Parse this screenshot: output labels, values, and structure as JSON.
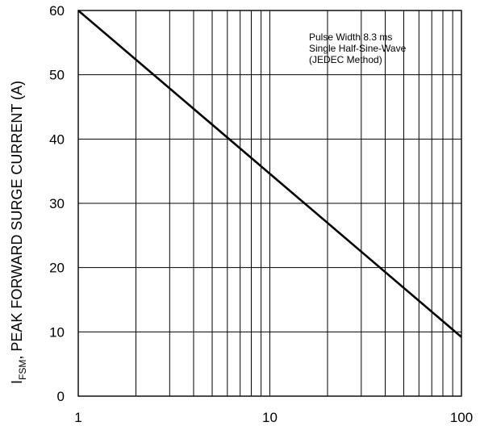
{
  "chart_data": {
    "type": "line",
    "title": "",
    "xlabel": "",
    "ylabel": {
      "main": "I",
      "sub": "FSM",
      "rest": ", PEAK FORWARD SURGE CURRENT (A)"
    },
    "x_scale": "log",
    "xlim": [
      1,
      100
    ],
    "ylim": [
      0,
      60
    ],
    "x_ticks": [
      1,
      10,
      100
    ],
    "x_tick_labels": [
      "1",
      "10",
      "100"
    ],
    "y_ticks": [
      0,
      10,
      20,
      30,
      40,
      50,
      60
    ],
    "y_tick_labels": [
      "0",
      "10",
      "20",
      "30",
      "40",
      "50",
      "60"
    ],
    "grid": true,
    "annotations": [
      "Pulse Width 8.3 ms",
      "Single Half-Sine-Wave",
      "(JEDEC Method)"
    ],
    "series": [
      {
        "x": [
          1,
          100
        ],
        "y": [
          60,
          9.2
        ]
      }
    ]
  }
}
